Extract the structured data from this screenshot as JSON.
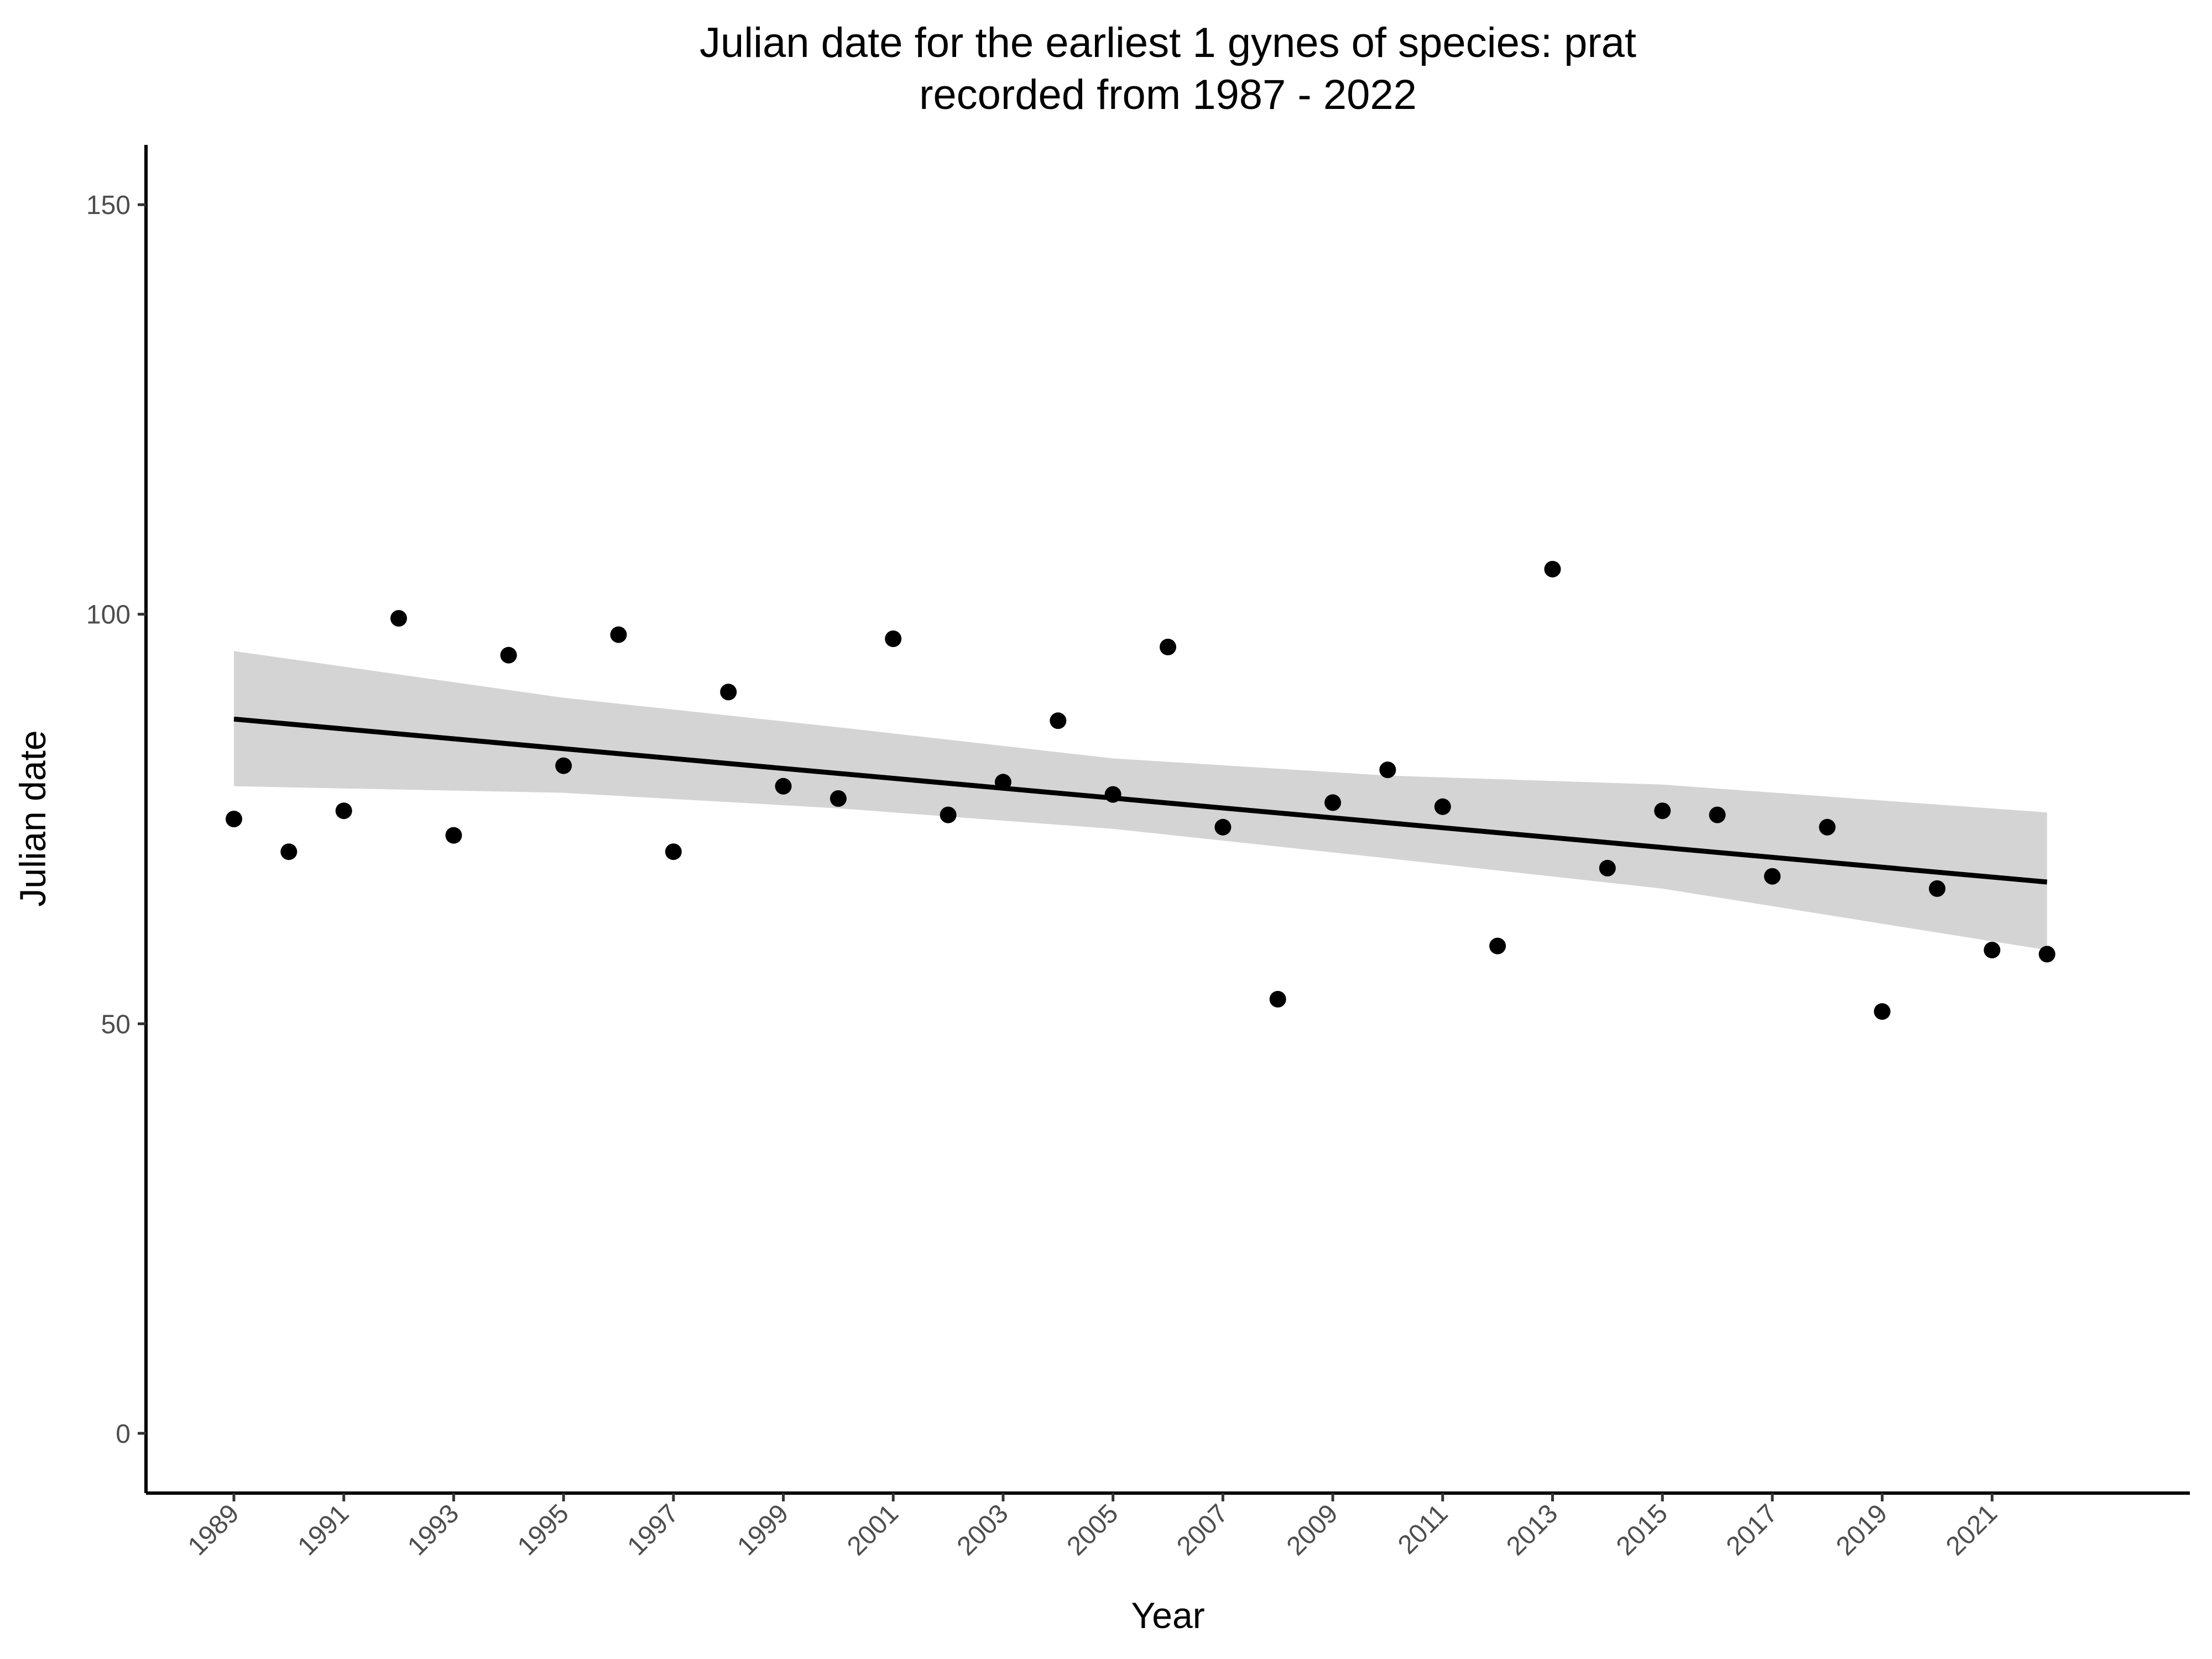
{
  "chart_data": {
    "type": "scatter",
    "title": "Julian date for the earliest 1 gynes of species: prat",
    "subtitle": "recorded from 1987 - 2022",
    "xlabel": "Year",
    "ylabel": "Julian date",
    "xlim": [
      1987.4,
      2024.6
    ],
    "ylim": [
      -7.3,
      157.3
    ],
    "x_ticks": [
      1989,
      1991,
      1993,
      1995,
      1997,
      1999,
      2001,
      2003,
      2005,
      2007,
      2009,
      2011,
      2013,
      2015,
      2017,
      2019,
      2021
    ],
    "x_tick_labels": [
      "1989",
      "1991",
      "1993",
      "1995",
      "1997",
      "1999",
      "2001",
      "2003",
      "2005",
      "2007",
      "2009",
      "2011",
      "2013",
      "2015",
      "2017",
      "2019",
      "2021"
    ],
    "y_ticks": [
      0,
      50,
      100,
      150
    ],
    "y_tick_labels": [
      "0",
      "50",
      "100",
      "150"
    ],
    "grid": false,
    "series": [
      {
        "type": "scatter",
        "color": "#000000",
        "x": [
          1989,
          1990,
          1991,
          1992,
          1993,
          1994,
          1995,
          1996,
          1997,
          1998,
          1999,
          2000,
          2001,
          2002,
          2003,
          2004,
          2005,
          2006,
          2007,
          2008,
          2009,
          2010,
          2011,
          2012,
          2013,
          2014,
          2015,
          2016,
          2017,
          2018,
          2019,
          2020,
          2021,
          2022
        ],
        "y": [
          75,
          71,
          76,
          99.5,
          73,
          95,
          81.5,
          97.5,
          71,
          90.5,
          79,
          77.5,
          97,
          75.5,
          79.5,
          87,
          78,
          96,
          74,
          53,
          77,
          81,
          76.5,
          59.5,
          105.5,
          69,
          76,
          75.5,
          68,
          74,
          51.5,
          66.5,
          59,
          58.5
        ]
      },
      {
        "type": "line",
        "color": "#000000",
        "x": [
          1989,
          2022
        ],
        "y": [
          87.2,
          67.3
        ]
      },
      {
        "type": "band",
        "color": "#d4d4d4",
        "x": [
          1989,
          1995,
          2000,
          2005,
          2010,
          2015,
          2022
        ],
        "upper": [
          95.5,
          89.8,
          86.2,
          82.4,
          80.3,
          79.2,
          75.8
        ],
        "lower": [
          79,
          78.2,
          76.3,
          73.8,
          70.2,
          66.5,
          59
        ]
      }
    ]
  }
}
